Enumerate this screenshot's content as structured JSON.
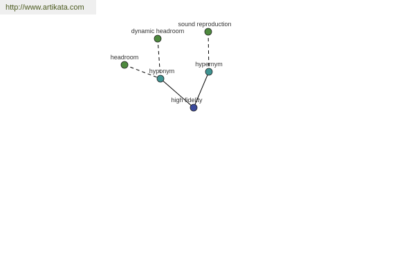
{
  "banner": {
    "link_text": "http://www.artikata.com"
  },
  "colors": {
    "related": "#4e8a3e",
    "relation": "#3f9492",
    "center": "#3b4a9c",
    "banner_bg": "#efefef",
    "link": "#4b5a1e"
  },
  "graph": {
    "center": {
      "label": "high fidelity"
    },
    "relations": [
      {
        "label": "hyponym",
        "terms": [
          {
            "label": "headroom"
          },
          {
            "label": "dynamic headroom"
          }
        ]
      },
      {
        "label": "hypernym",
        "terms": [
          {
            "label": "sound reproduction"
          }
        ]
      }
    ]
  }
}
